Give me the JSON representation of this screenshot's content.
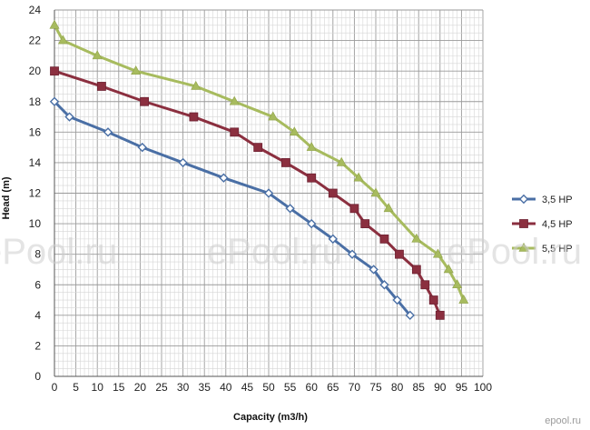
{
  "chart_data": {
    "type": "line",
    "xlabel": "Capacity (m3/h)",
    "ylabel": "Head (m)",
    "xlim": [
      0,
      100
    ],
    "ylim": [
      0,
      24
    ],
    "x_ticks": [
      0,
      5,
      10,
      15,
      20,
      25,
      30,
      35,
      40,
      45,
      50,
      55,
      60,
      65,
      70,
      75,
      80,
      85,
      90,
      95,
      100
    ],
    "y_ticks": [
      0,
      2,
      4,
      6,
      8,
      10,
      12,
      14,
      16,
      18,
      20,
      22,
      24
    ],
    "grid": true,
    "legend_position": "right",
    "series": [
      {
        "name": "3,5 HP",
        "color": "#4a6fa5",
        "marker": "diamond",
        "x": [
          0,
          3.5,
          12.5,
          20.5,
          30,
          39.5,
          50,
          55,
          60,
          65,
          69.5,
          74.5,
          77,
          80,
          83
        ],
        "y": [
          18,
          17,
          16,
          15,
          14,
          13,
          12,
          11,
          10,
          9,
          8,
          7,
          6,
          5,
          4
        ]
      },
      {
        "name": "4,5 HP",
        "color": "#8b2f3f",
        "marker": "square",
        "x": [
          0,
          11,
          21,
          32.5,
          42,
          47.5,
          54,
          60,
          65,
          70,
          72.5,
          77,
          80.5,
          84.5,
          86.5,
          88.5,
          90
        ],
        "y": [
          20,
          19,
          18,
          17,
          16,
          15,
          14,
          13,
          12,
          11,
          10,
          9,
          8,
          7,
          6,
          5,
          4
        ]
      },
      {
        "name": "5,5 HP",
        "color": "#a7bb5e",
        "marker": "triangle",
        "x": [
          0,
          2,
          10,
          19,
          33,
          42,
          51,
          56,
          60,
          67,
          71,
          75,
          78,
          84.5,
          89.5,
          92,
          94,
          95.5
        ],
        "y": [
          23,
          22,
          21,
          20,
          19,
          18,
          17,
          16,
          15,
          14,
          13,
          12,
          11,
          9,
          8,
          7,
          6,
          5
        ]
      }
    ]
  },
  "watermark": {
    "text": "ePool.ru",
    "brand": "epool.ru"
  }
}
